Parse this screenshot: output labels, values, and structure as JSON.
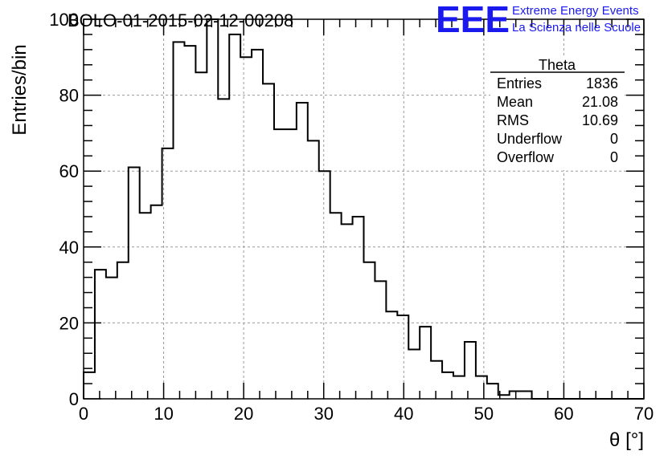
{
  "title": "BOLO-01-2015-02-12-00208",
  "logo": {
    "mark": "EEE",
    "line1": "Extreme Energy Events",
    "line2": "La Scienza nelle Scuole",
    "color": "#1a1aee"
  },
  "stats": {
    "name": "Theta",
    "rows": [
      {
        "label": "Entries",
        "value": "1836"
      },
      {
        "label": "Mean",
        "value": "21.08"
      },
      {
        "label": "RMS",
        "value": "10.69"
      },
      {
        "label": "Underflow",
        "value": "0"
      },
      {
        "label": "Overflow",
        "value": "0"
      }
    ]
  },
  "chart_data": {
    "type": "histogram",
    "xlabel": "θ [°]",
    "ylabel": "Entries/bin",
    "xlim": [
      0,
      70
    ],
    "ylim": [
      0,
      100
    ],
    "xticks": [
      0,
      10,
      20,
      30,
      40,
      50,
      60,
      70
    ],
    "yticks": [
      0,
      20,
      40,
      60,
      80,
      100
    ],
    "grid": true,
    "bin_width": 1.4,
    "bin_edges_start": 0,
    "values": [
      7,
      34,
      32,
      36,
      61,
      49,
      51,
      66,
      94,
      93,
      86,
      100,
      79,
      96,
      90,
      92,
      83,
      71,
      71,
      78,
      68,
      60,
      49,
      46,
      48,
      36,
      31,
      23,
      22,
      13,
      19,
      10,
      7,
      6,
      15,
      6,
      4,
      1,
      2,
      2,
      0,
      0,
      0,
      0,
      0,
      0,
      0,
      0,
      0,
      0
    ]
  }
}
